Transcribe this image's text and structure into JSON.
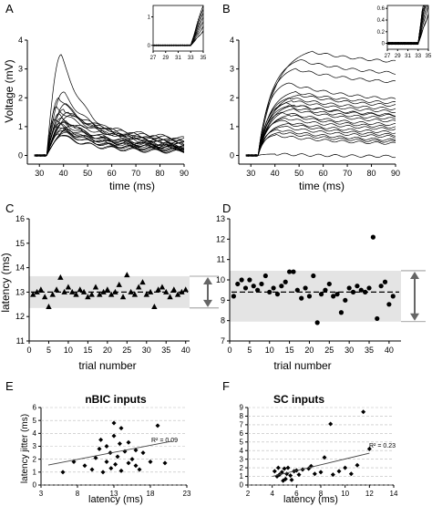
{
  "chart_data": [
    {
      "panel": "A",
      "type": "line",
      "xlabel": "time (ms)",
      "ylabel": "Voltage (mV)",
      "xlim": [
        25,
        90
      ],
      "ylim": [
        -0.3,
        4
      ],
      "xticks": [
        30,
        40,
        50,
        60,
        70,
        80,
        90
      ],
      "yticks": [
        0,
        1,
        2,
        3,
        4
      ],
      "traces": [
        {
          "peak": 3.5,
          "base": 0.5,
          "tp": 39
        },
        {
          "peak": 2.2,
          "base": 0.7,
          "tp": 40
        },
        {
          "peak": 2.0,
          "base": 0.9,
          "tp": 38
        },
        {
          "peak": 1.8,
          "base": 0.6,
          "tp": 41
        },
        {
          "peak": 1.7,
          "base": 0.8,
          "tp": 37
        },
        {
          "peak": 1.6,
          "base": 1.0,
          "tp": 40
        },
        {
          "peak": 1.5,
          "base": 0.7,
          "tp": 42
        },
        {
          "peak": 1.45,
          "base": 0.5,
          "tp": 38
        },
        {
          "peak": 1.4,
          "base": 0.9,
          "tp": 43
        },
        {
          "peak": 1.3,
          "base": 0.6,
          "tp": 39
        },
        {
          "peak": 1.25,
          "base": 0.4,
          "tp": 36
        },
        {
          "peak": 1.2,
          "base": 0.8,
          "tp": 41
        },
        {
          "peak": 1.15,
          "base": 0.5,
          "tp": 40
        },
        {
          "peak": 1.1,
          "base": 0.6,
          "tp": 38
        },
        {
          "peak": 1.05,
          "base": 0.4,
          "tp": 44
        },
        {
          "peak": 1.0,
          "base": 0.5,
          "tp": 37
        },
        {
          "peak": 0.95,
          "base": 0.3,
          "tp": 40
        },
        {
          "peak": 0.9,
          "base": 0.4,
          "tp": 42
        },
        {
          "peak": 0.85,
          "base": 0.35,
          "tp": 39
        },
        {
          "peak": 0.8,
          "base": 0.3,
          "tp": 41
        },
        {
          "peak": 0.75,
          "base": 0.25,
          "tp": 38
        },
        {
          "peak": 0.7,
          "base": 0.2,
          "tp": 40
        }
      ],
      "inset": {
        "xlim": [
          27,
          35
        ],
        "ylim": [
          -0.2,
          1.4
        ],
        "xticks": [
          27,
          29,
          31,
          33,
          35
        ],
        "yticks": [
          0,
          1
        ]
      }
    },
    {
      "panel": "B",
      "type": "line",
      "xlabel": "time (ms)",
      "ylabel": "",
      "xlim": [
        25,
        90
      ],
      "ylim": [
        -0.3,
        4
      ],
      "xticks": [
        30,
        40,
        50,
        60,
        70,
        80,
        90
      ],
      "yticks": [
        0,
        1,
        2,
        3,
        4
      ],
      "traces": [
        {
          "peak": 3.6,
          "base": 3.1,
          "tp": 55
        },
        {
          "peak": 3.3,
          "base": 2.7,
          "tp": 50
        },
        {
          "peak": 3.0,
          "base": 2.4,
          "tp": 48
        },
        {
          "peak": 2.5,
          "base": 1.8,
          "tp": 45
        },
        {
          "peak": 2.2,
          "base": 1.7,
          "tp": 48
        },
        {
          "peak": 2.1,
          "base": 1.6,
          "tp": 50
        },
        {
          "peak": 2.0,
          "base": 1.5,
          "tp": 46
        },
        {
          "peak": 1.9,
          "base": 1.4,
          "tp": 47
        },
        {
          "peak": 1.8,
          "base": 1.3,
          "tp": 44
        },
        {
          "peak": 1.75,
          "base": 1.25,
          "tp": 48
        },
        {
          "peak": 1.7,
          "base": 1.15,
          "tp": 45
        },
        {
          "peak": 1.6,
          "base": 1.05,
          "tp": 47
        },
        {
          "peak": 1.5,
          "base": 0.95,
          "tp": 43
        },
        {
          "peak": 1.4,
          "base": 0.85,
          "tp": 46
        },
        {
          "peak": 1.3,
          "base": 0.8,
          "tp": 44
        },
        {
          "peak": 1.2,
          "base": 0.7,
          "tp": 42
        },
        {
          "peak": 1.1,
          "base": 0.6,
          "tp": 45
        },
        {
          "peak": 1.0,
          "base": 0.55,
          "tp": 43
        },
        {
          "peak": 0.9,
          "base": 0.45,
          "tp": 41
        },
        {
          "peak": 0.8,
          "base": 0.4,
          "tp": 42
        },
        {
          "peak": 0.7,
          "base": 0.35,
          "tp": 40
        },
        {
          "peak": 0.05,
          "base": -0.05,
          "tp": 40
        }
      ],
      "inset": {
        "xlim": [
          27,
          35
        ],
        "ylim": [
          -0.1,
          0.65
        ],
        "xticks": [
          27,
          29,
          31,
          33,
          35
        ],
        "yticks": [
          0,
          0.2,
          0.4,
          0.6
        ]
      }
    },
    {
      "panel": "C",
      "type": "scatter",
      "marker": "triangle",
      "xlabel": "trial number",
      "ylabel": "latency (ms)",
      "xlim": [
        0,
        41
      ],
      "ylim": [
        11,
        16
      ],
      "xticks": [
        0,
        5,
        10,
        15,
        20,
        25,
        30,
        35,
        40
      ],
      "yticks": [
        11,
        12,
        13,
        14,
        15,
        16
      ],
      "mean": 13.0,
      "band": [
        12.35,
        13.65
      ],
      "x": [
        1,
        2,
        3,
        4,
        5,
        6,
        7,
        8,
        9,
        10,
        11,
        12,
        13,
        14,
        15,
        16,
        17,
        18,
        19,
        20,
        21,
        22,
        23,
        24,
        25,
        26,
        27,
        28,
        29,
        30,
        31,
        32,
        33,
        34,
        35,
        36,
        37,
        38,
        39,
        40
      ],
      "y": [
        12.9,
        13.0,
        13.1,
        12.8,
        12.4,
        12.9,
        13.1,
        13.6,
        13.0,
        13.2,
        13.0,
        12.9,
        13.1,
        13.0,
        12.8,
        12.9,
        13.2,
        12.9,
        13.0,
        13.1,
        12.9,
        13.0,
        13.3,
        12.8,
        13.7,
        13.0,
        12.9,
        13.2,
        13.4,
        12.9,
        13.0,
        12.4,
        13.1,
        13.2,
        13.0,
        12.8,
        13.1,
        12.9,
        13.0,
        13.1
      ]
    },
    {
      "panel": "D",
      "type": "scatter",
      "marker": "circle",
      "xlabel": "trial number",
      "ylabel": "",
      "xlim": [
        0,
        43
      ],
      "ylim": [
        7,
        13
      ],
      "xticks": [
        0,
        5,
        10,
        15,
        20,
        25,
        30,
        35,
        40
      ],
      "yticks": [
        7,
        8,
        9,
        10,
        11,
        12,
        13
      ],
      "mean": 9.4,
      "band": [
        7.95,
        10.45
      ],
      "x": [
        1,
        2,
        3,
        4,
        5,
        6,
        7,
        8,
        9,
        10,
        11,
        12,
        13,
        14,
        15,
        16,
        17,
        18,
        19,
        20,
        21,
        22,
        23,
        24,
        25,
        26,
        27,
        28,
        29,
        30,
        31,
        32,
        33,
        34,
        35,
        36,
        37,
        38,
        39,
        40,
        41
      ],
      "y": [
        9.2,
        9.8,
        10.0,
        9.6,
        10.0,
        9.7,
        9.5,
        9.8,
        10.2,
        9.4,
        9.6,
        9.3,
        9.7,
        9.9,
        10.4,
        10.4,
        9.5,
        9.1,
        9.6,
        9.2,
        10.2,
        7.9,
        9.3,
        9.5,
        9.8,
        9.2,
        9.3,
        8.4,
        9.0,
        9.6,
        9.4,
        9.7,
        9.5,
        9.4,
        9.6,
        12.1,
        8.1,
        9.7,
        9.9,
        8.8,
        9.2
      ]
    },
    {
      "panel": "E",
      "type": "scatter",
      "marker": "diamond",
      "title": "nBIC inputs",
      "xlabel": "latency (ms)",
      "ylabel": "latency jitter (ms)",
      "xlim": [
        3,
        23
      ],
      "ylim": [
        0,
        6
      ],
      "xticks": [
        3,
        8,
        13,
        18,
        23
      ],
      "yticks": [
        0,
        1,
        2,
        3,
        4,
        5,
        6
      ],
      "r2_label": "R² = 0.09",
      "fit": [
        [
          4,
          1.55
        ],
        [
          21,
          3.4
        ]
      ],
      "x": [
        6,
        7.5,
        9,
        10,
        10.5,
        11,
        11.2,
        11.5,
        12,
        12,
        12.5,
        12.6,
        13,
        13,
        13.2,
        13.5,
        13.8,
        14,
        14,
        14.5,
        15,
        15,
        15.5,
        16,
        16,
        16.5,
        17,
        18,
        19,
        20
      ],
      "y": [
        1.0,
        1.8,
        1.5,
        1.2,
        2.1,
        2.8,
        3.5,
        1.0,
        3.0,
        1.8,
        2.5,
        1.3,
        3.8,
        4.8,
        1.6,
        2.2,
        3.2,
        1.1,
        4.4,
        2.6,
        1.7,
        3.3,
        2.0,
        1.5,
        2.7,
        1.2,
        2.5,
        1.8,
        4.6,
        1.7
      ]
    },
    {
      "panel": "F",
      "type": "scatter",
      "marker": "diamond",
      "title": "SC inputs",
      "xlabel": "latency (ms)",
      "ylabel": "",
      "xlim": [
        2,
        14
      ],
      "ylim": [
        0,
        9
      ],
      "xticks": [
        2,
        4,
        6,
        8,
        10,
        12,
        14
      ],
      "yticks": [
        0,
        1,
        2,
        3,
        4,
        5,
        6,
        7,
        8,
        9
      ],
      "r2_label": "R² = 0.23",
      "fit": [
        [
          4,
          1.0
        ],
        [
          12,
          3.7
        ]
      ],
      "x": [
        4.2,
        4.4,
        4.5,
        4.6,
        4.8,
        4.9,
        5.0,
        5.1,
        5.2,
        5.3,
        5.5,
        5.6,
        5.8,
        6.0,
        6.2,
        6.5,
        7.0,
        7.2,
        7.5,
        8.0,
        8.3,
        8.8,
        9.0,
        9.5,
        10.0,
        10.5,
        11.0,
        11.5,
        12.0
      ],
      "y": [
        1.6,
        1.0,
        2.0,
        1.2,
        1.5,
        0.5,
        1.9,
        0.7,
        1.3,
        2.0,
        1.1,
        0.6,
        1.6,
        1.7,
        1.2,
        1.8,
        1.9,
        2.2,
        1.3,
        1.5,
        3.2,
        7.1,
        1.2,
        1.6,
        2.0,
        1.3,
        2.3,
        8.5,
        4.2
      ]
    }
  ]
}
